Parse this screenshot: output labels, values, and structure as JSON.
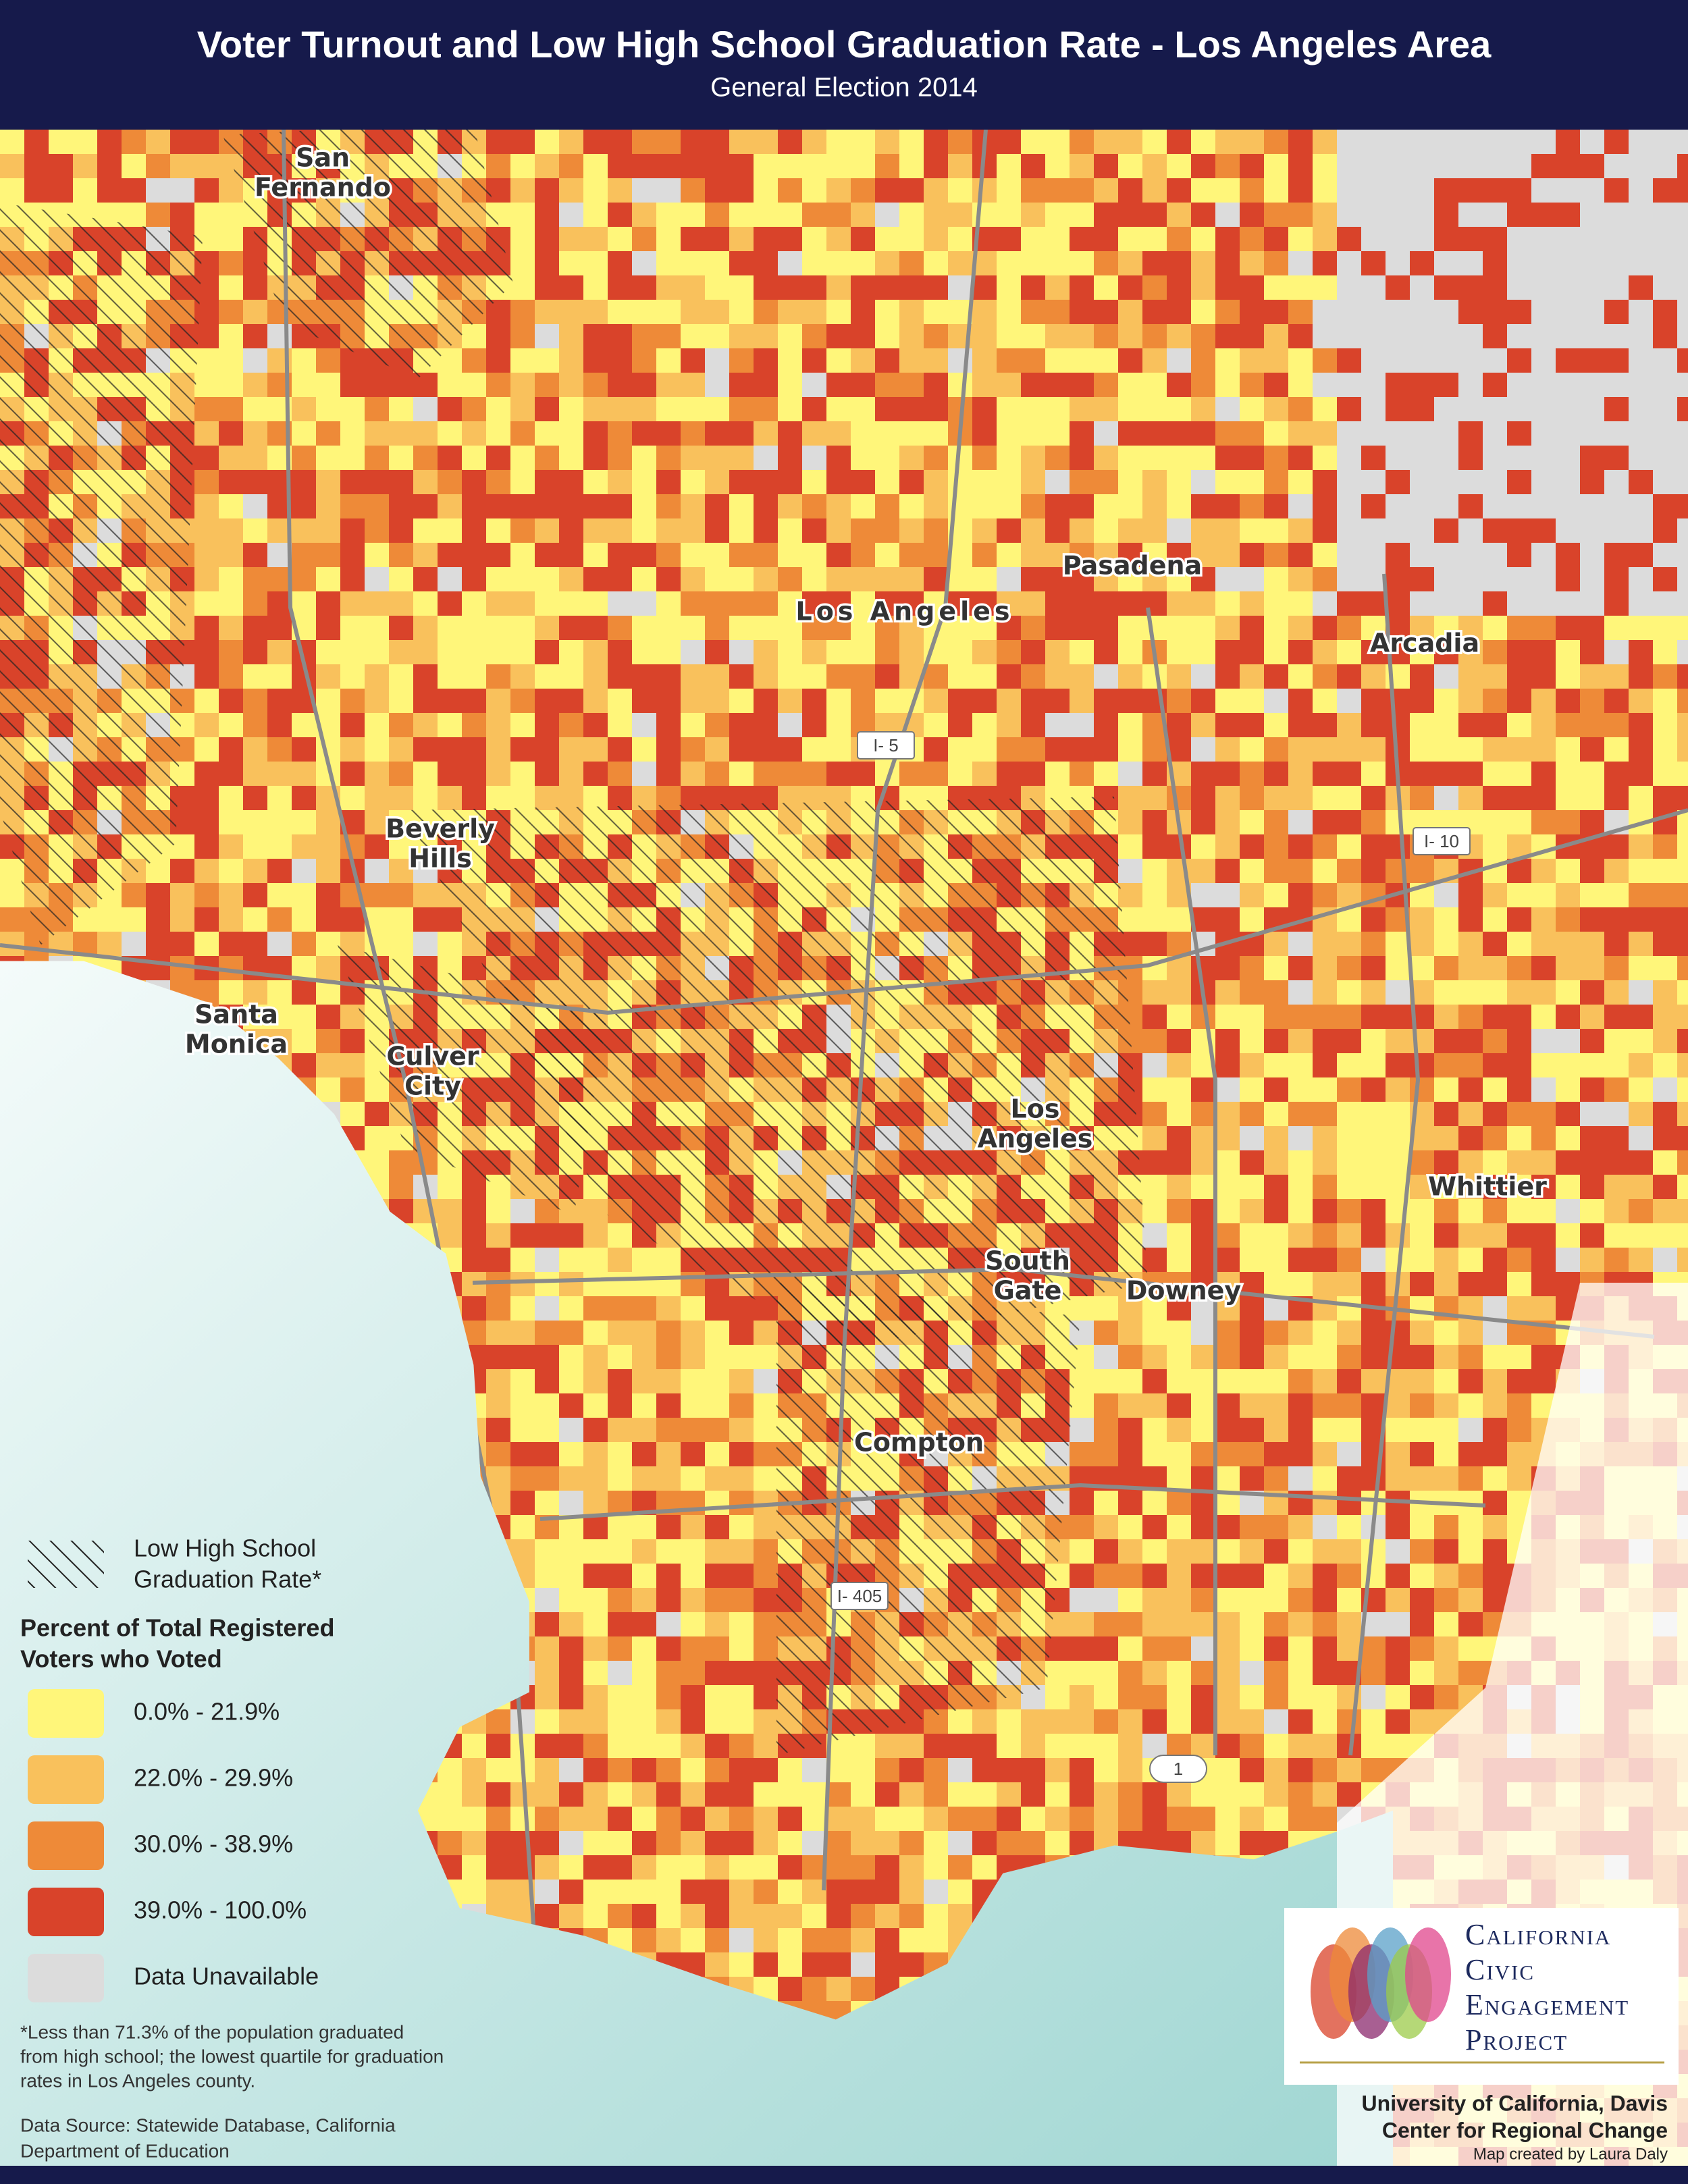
{
  "header": {
    "title": "Voter Turnout and Low High School Graduation Rate - Los Angeles Area",
    "subtitle": "General Election 2014"
  },
  "map": {
    "places": [
      {
        "lines": [
          "San",
          "Fernando"
        ]
      },
      {
        "lines": [
          "Pasadena"
        ]
      },
      {
        "lines": [
          "Los Angeles"
        ]
      },
      {
        "lines": [
          "Arcadia"
        ]
      },
      {
        "lines": [
          "Beverly",
          "Hills"
        ]
      },
      {
        "lines": [
          "Santa",
          "Monica"
        ]
      },
      {
        "lines": [
          "Culver",
          "City"
        ]
      },
      {
        "lines": [
          "Los",
          "Angeles"
        ]
      },
      {
        "lines": [
          "Whittier"
        ]
      },
      {
        "lines": [
          "South",
          "Gate"
        ]
      },
      {
        "lines": [
          "Downey"
        ]
      },
      {
        "lines": [
          "Compton"
        ]
      }
    ],
    "highways": [
      "I- 5",
      "I- 10",
      "I- 405",
      "1"
    ]
  },
  "legend": {
    "hatch_label": [
      "Low High School",
      "Graduation Rate*"
    ],
    "title": [
      "Percent of Total Registered",
      "Voters who Voted"
    ],
    "items": [
      {
        "label": "0.0% - 21.9%",
        "color": "#fff67a"
      },
      {
        "label": "22.0% - 29.9%",
        "color": "#f9c15c"
      },
      {
        "label": "30.0% - 38.9%",
        "color": "#ee8a38"
      },
      {
        "label": "39.0% - 100.0%",
        "color": "#d9432a"
      },
      {
        "label": "Data Unavailable",
        "color": "#dcdcdc"
      }
    ]
  },
  "footnote": [
    "*Less than 71.3% of the population graduated",
    "from high school; the lowest quartile for graduation",
    "rates in Los Angeles county."
  ],
  "source": [
    "Data Source: Statewide Database, California",
    "Department of Education"
  ],
  "logo": [
    "California",
    "Civic",
    "Engagement",
    "Project"
  ],
  "credits": [
    "University of California, Davis",
    "Center for Regional Change",
    "Map created by Laura Daly"
  ]
}
